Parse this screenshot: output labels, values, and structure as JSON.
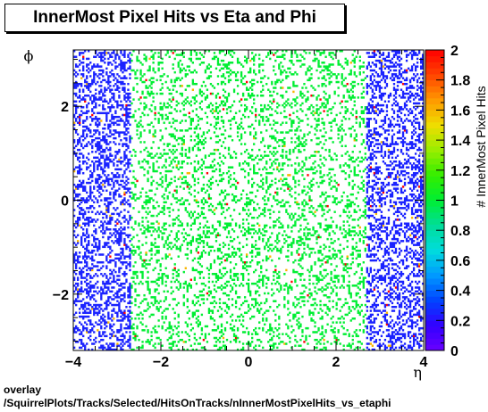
{
  "title": "InnerMost Pixel Hits vs Eta and Phi",
  "footer": {
    "line1": "overlay",
    "line2": "/SquirrelPlots/Tracks/Selected/HitsOnTracks/nInnerMostPixelHits_vs_etaphi"
  },
  "chart_data": {
    "type": "heatmap",
    "title": "InnerMost Pixel Hits vs Eta and Phi",
    "xlabel": "η",
    "ylabel": "ϕ",
    "zlabel": "# InnerMost Pixel Hits",
    "xlim": [
      -4,
      4
    ],
    "ylim": [
      -3.2,
      3.2
    ],
    "zlim": [
      0,
      2
    ],
    "x_ticks": [
      -4,
      -2,
      0,
      2,
      4
    ],
    "x_tick_labels": [
      "−4",
      "−2",
      "0",
      "2",
      "4"
    ],
    "y_ticks": [
      -2,
      0,
      2
    ],
    "y_tick_labels": [
      "−2",
      "0",
      "2"
    ],
    "z_ticks": [
      0,
      0.2,
      0.4,
      0.6,
      0.8,
      1,
      1.2,
      1.4,
      1.6,
      1.8,
      2
    ],
    "z_tick_labels": [
      "0",
      "0.2",
      "0.4",
      "0.6",
      "0.8",
      "1",
      "1.2",
      "1.4",
      "1.6",
      "1.8",
      "2"
    ],
    "bins": {
      "nx": 195,
      "ny": 155
    },
    "regions": [
      {
        "eta_range": [
          -4.0,
          -2.7
        ],
        "typical_value": 0.25,
        "occupancy": 0.35
      },
      {
        "eta_range": [
          -2.7,
          2.7
        ],
        "typical_value": 1.0,
        "occupancy": 0.2
      },
      {
        "eta_range": [
          2.7,
          4.0
        ],
        "typical_value": 0.25,
        "occupancy": 0.35
      }
    ],
    "rare_values": [
      1.6,
      2.0
    ],
    "palette_stops": [
      "#6a00ff",
      "#3300ff",
      "#0044ff",
      "#0099ff",
      "#00dddd",
      "#00dd99",
      "#00ee33",
      "#33ee00",
      "#99ee00",
      "#eedd00",
      "#ff9900",
      "#ff4400",
      "#ff0000"
    ],
    "grid": false,
    "legend": "none"
  }
}
